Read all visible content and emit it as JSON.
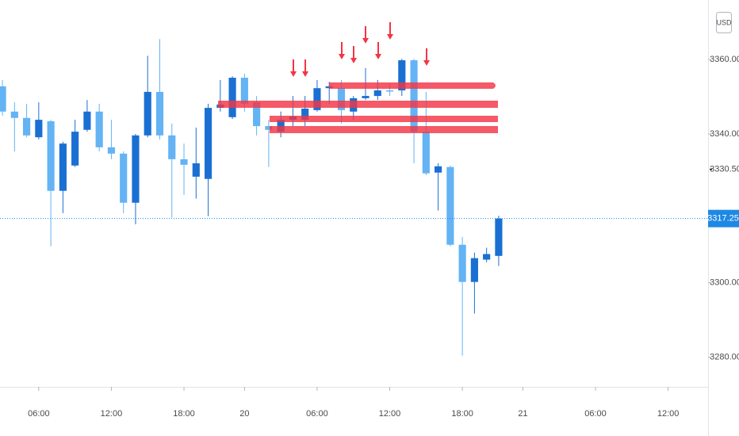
{
  "chart_data": {
    "type": "candlestick",
    "currency": "USD",
    "up_color": "#1a70d2",
    "down_color": "#64b3f4",
    "x": [
      0,
      1,
      2,
      3,
      4,
      5,
      6,
      7,
      8,
      9,
      10,
      11,
      12,
      13,
      14,
      15,
      16,
      17,
      18,
      19,
      20,
      21,
      22,
      23,
      24,
      25,
      26,
      27,
      28,
      29,
      30,
      31,
      32,
      33,
      34,
      35,
      36,
      37,
      38,
      39,
      40,
      41
    ],
    "open": [
      3352.8,
      3346.0,
      3344.3,
      3339.1,
      3343.4,
      3324.7,
      3331.5,
      3341.1,
      3346.0,
      3336.4,
      3334.7,
      3321.5,
      3339.6,
      3351.3,
      3339.6,
      3333.2,
      3328.5,
      3327.9,
      3347.0,
      3344.5,
      3355.1,
      3348.5,
      3342.1,
      3340.6,
      3343.8,
      3343.8,
      3346.4,
      3352.3,
      3352.3,
      3346.0,
      3349.6,
      3350.2,
      3351.7,
      3351.7,
      3359.8,
      3340.6,
      3329.6,
      3331.1,
      3310.2,
      3300.2,
      3306.2,
      3307.2
    ],
    "high": [
      3354.5,
      3348.5,
      3348.1,
      3348.5,
      3343.8,
      3337.9,
      3343.8,
      3349.1,
      3348.1,
      3343.8,
      3335.3,
      3340.0,
      3361.0,
      3365.5,
      3342.8,
      3337.4,
      3341.7,
      3348.1,
      3354.5,
      3355.5,
      3356.2,
      3350.2,
      3343.8,
      3346.0,
      3350.2,
      3350.2,
      3354.5,
      3354.0,
      3354.5,
      3350.2,
      3357.7,
      3354.5,
      3353.4,
      3360.2,
      3360.2,
      3351.3,
      3332.1,
      3331.5,
      3312.3,
      3308.1,
      3309.4,
      3318.0
    ],
    "low": [
      3344.9,
      3335.3,
      3339.1,
      3338.5,
      3309.8,
      3318.7,
      3331.1,
      3340.6,
      3335.3,
      3333.2,
      3318.7,
      3315.7,
      3339.1,
      3338.5,
      3317.5,
      3323.6,
      3322.6,
      3317.9,
      3346.0,
      3344.0,
      3346.0,
      3339.6,
      3331.1,
      3339.1,
      3342.1,
      3342.1,
      3346.0,
      3348.1,
      3342.8,
      3343.8,
      3349.1,
      3349.1,
      3350.2,
      3350.2,
      3332.1,
      3328.9,
      3319.4,
      3309.8,
      3280.4,
      3291.7,
      3305.5,
      3304.5
    ],
    "close": [
      3346.0,
      3344.3,
      3339.6,
      3343.8,
      3324.7,
      3337.4,
      3340.6,
      3346.0,
      3336.4,
      3334.7,
      3321.5,
      3339.6,
      3351.3,
      3339.6,
      3333.2,
      3331.7,
      3332.1,
      3347.0,
      3347.9,
      3355.1,
      3348.1,
      3342.1,
      3341.1,
      3343.8,
      3344.7,
      3346.8,
      3352.3,
      3352.8,
      3346.4,
      3349.6,
      3350.2,
      3351.7,
      3351.5,
      3359.8,
      3340.6,
      3329.4,
      3331.3,
      3310.2,
      3300.2,
      3306.6,
      3307.7,
      3317.25
    ],
    "xlim": [
      -0.2,
      58.3
    ],
    "xticks": [
      {
        "value": 3,
        "label": "06:00"
      },
      {
        "value": 9,
        "label": "12:00"
      },
      {
        "value": 15,
        "label": "18:00"
      },
      20,
      {
        "value": 26,
        "label": "06:00"
      },
      {
        "value": 32,
        "label": "12:00"
      },
      {
        "value": 38,
        "label": "18:00"
      },
      21,
      {
        "value": 49,
        "label": "06:00"
      },
      {
        "value": 55,
        "label": "12:00"
      }
    ],
    "xtick_positions": [
      3,
      9,
      15,
      20,
      26,
      32,
      38,
      43,
      49,
      55
    ],
    "ylim": [
      3272,
      3376
    ],
    "yticks": [
      {
        "value": 3360,
        "label": "3360.00"
      },
      {
        "value": 3340,
        "label": "3340.00"
      },
      {
        "value": 3300,
        "label": "3300.00"
      },
      {
        "value": 3280,
        "label": "3280.00"
      }
    ],
    "marker_price": {
      "value": 3330.5,
      "label": "3330.50"
    },
    "last_price": {
      "value": 3317.25,
      "label": "3317.25"
    },
    "last_price_color": "#1e88e5"
  }
}
